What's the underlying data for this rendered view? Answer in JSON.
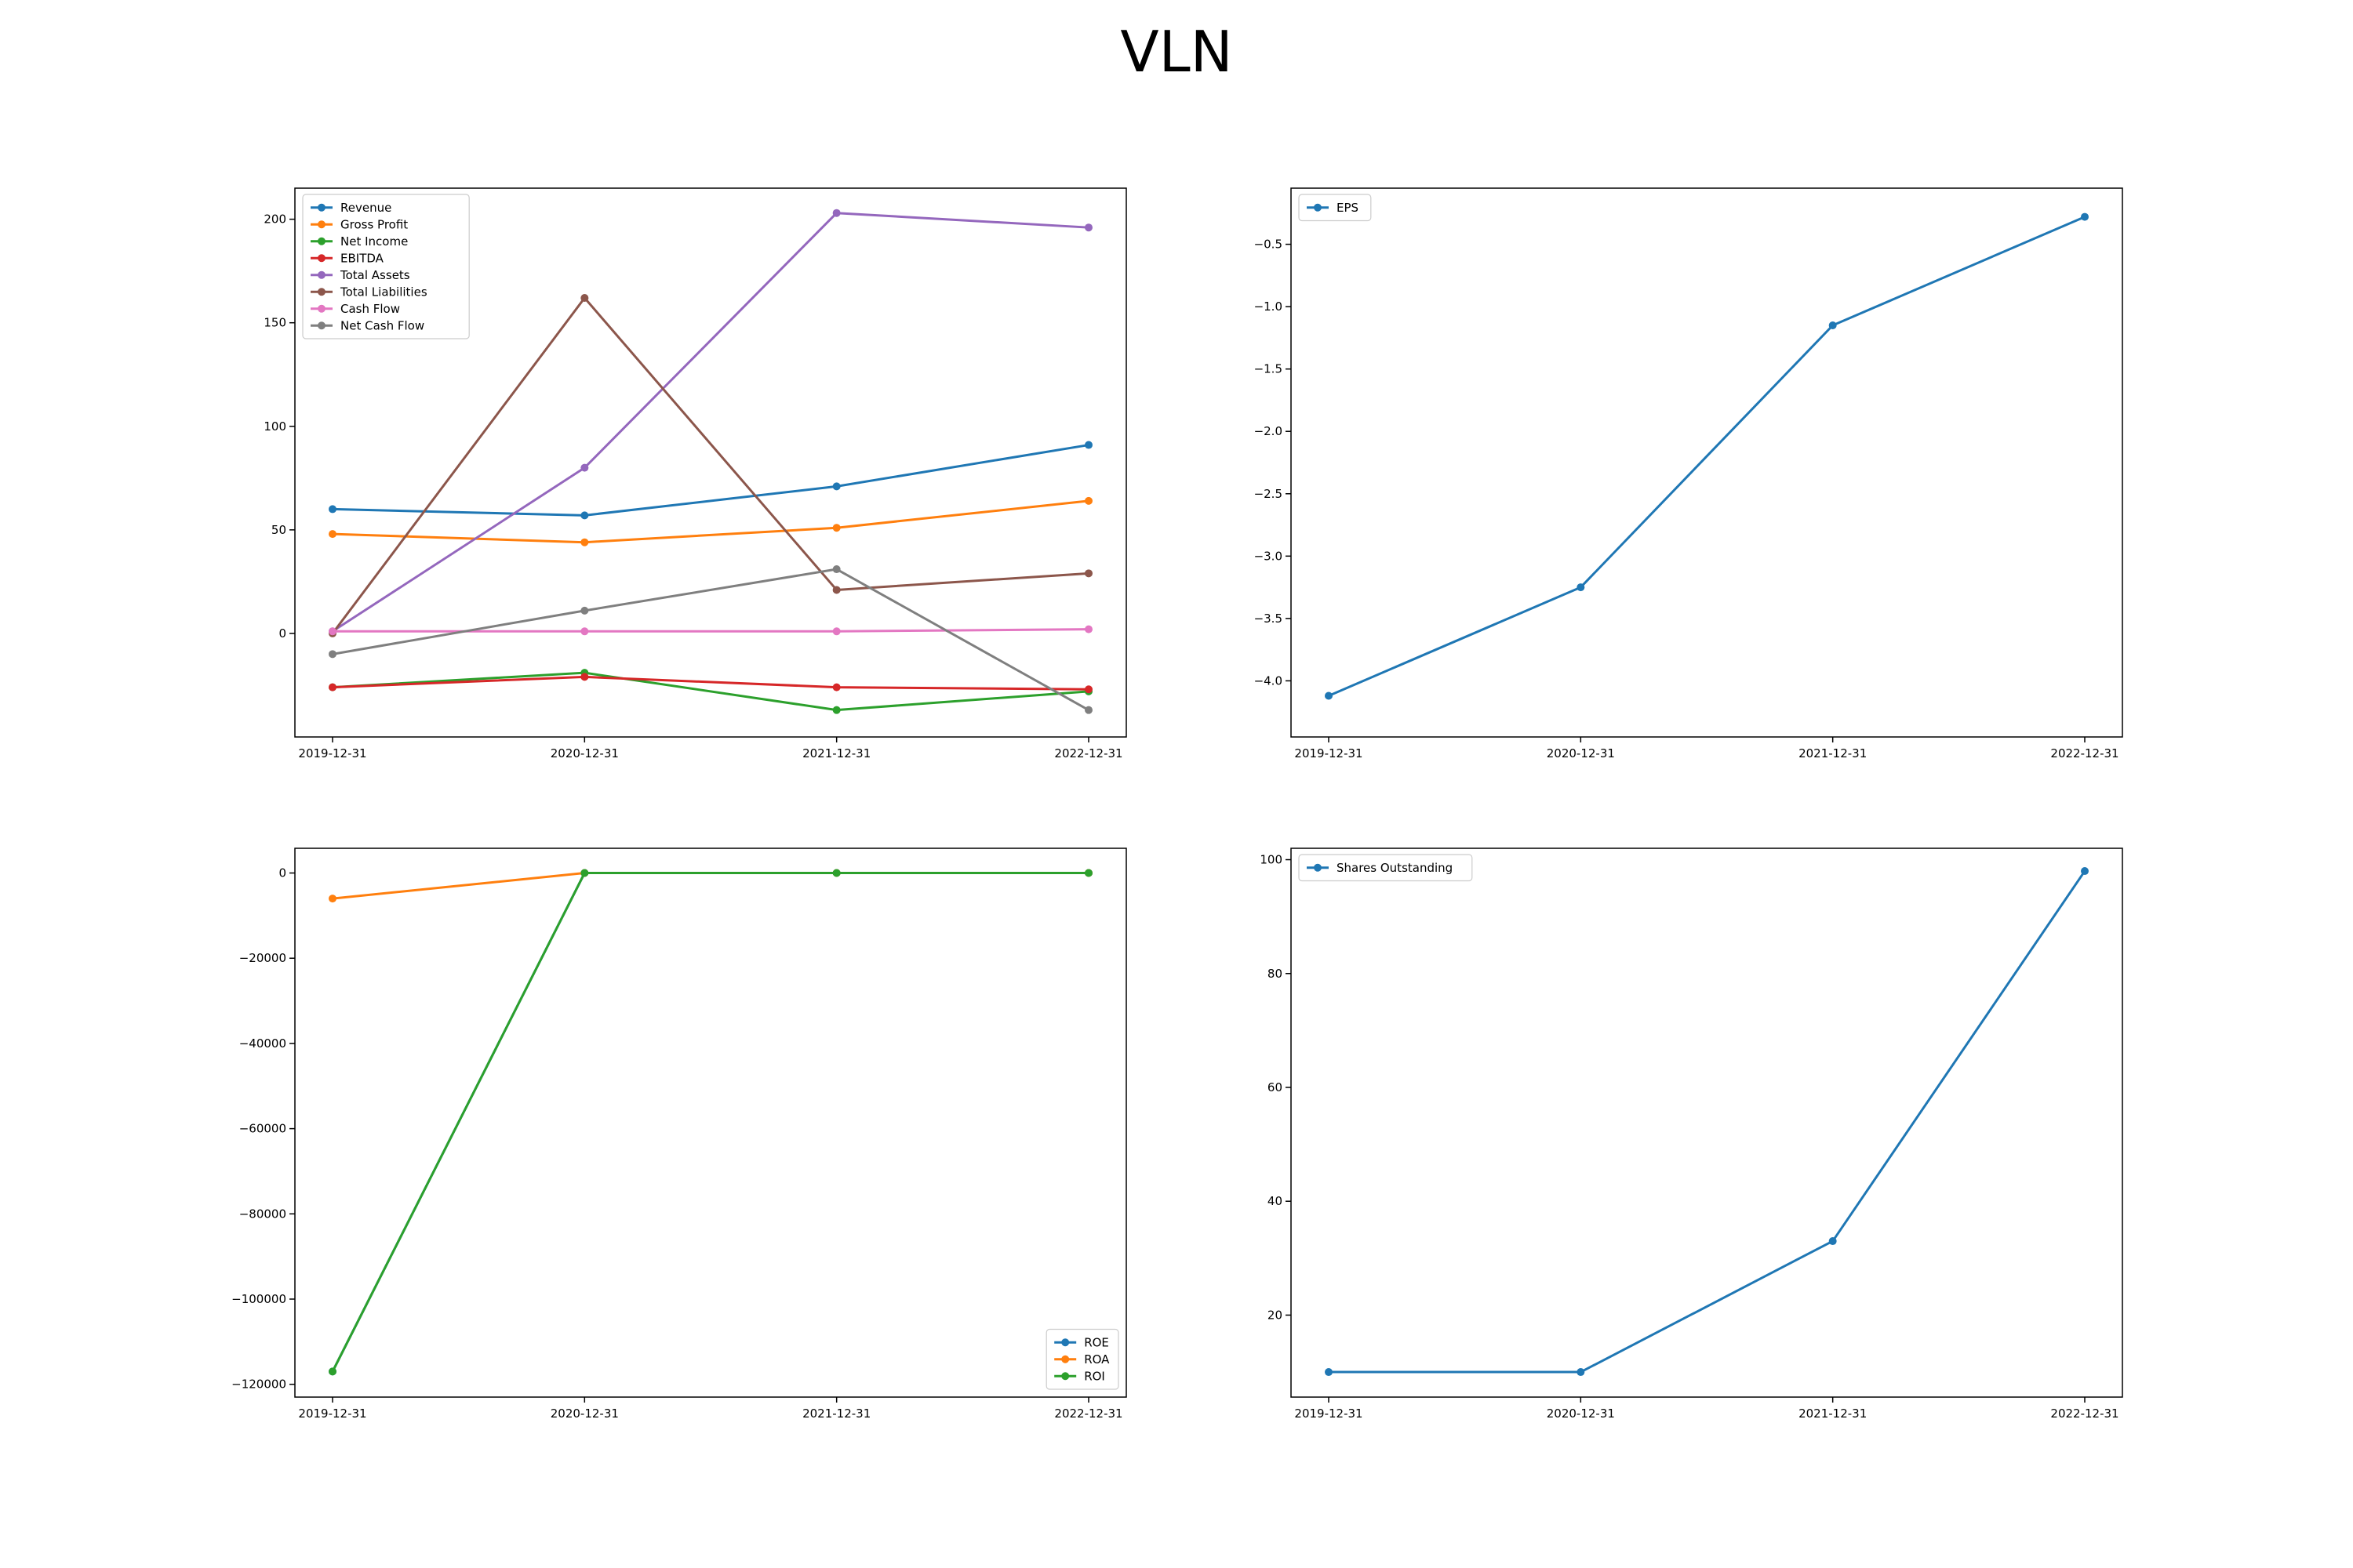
{
  "title": "VLN",
  "colors": {
    "blue": "#1f77b4",
    "orange": "#ff7f0e",
    "green": "#2ca02c",
    "red": "#d62728",
    "purple": "#9467bd",
    "brown": "#8c564b",
    "pink": "#e377c2",
    "gray": "#7f7f7f"
  },
  "chart_data": [
    {
      "type": "line",
      "x": [
        "2019-12-31",
        "2020-12-31",
        "2021-12-31",
        "2022-12-31"
      ],
      "ylim": [
        -50,
        215
      ],
      "yticks": [
        0,
        50,
        100,
        150,
        200
      ],
      "ytick_labels": [
        "0",
        "50",
        "100",
        "150",
        "200"
      ],
      "legend": "upper left",
      "series": [
        {
          "name": "Revenue",
          "color": "#1f77b4",
          "values": [
            60,
            57,
            71,
            91
          ]
        },
        {
          "name": "Gross Profit",
          "color": "#ff7f0e",
          "values": [
            48,
            44,
            51,
            64
          ]
        },
        {
          "name": "Net Income",
          "color": "#2ca02c",
          "values": [
            -26,
            -19,
            -37,
            -28
          ]
        },
        {
          "name": "EBITDA",
          "color": "#d62728",
          "values": [
            -26,
            -21,
            -26,
            -27
          ]
        },
        {
          "name": "Total Assets",
          "color": "#9467bd",
          "values": [
            1,
            80,
            203,
            196
          ]
        },
        {
          "name": "Total Liabilities",
          "color": "#8c564b",
          "values": [
            0,
            162,
            21,
            29
          ]
        },
        {
          "name": "Cash Flow",
          "color": "#e377c2",
          "values": [
            1,
            1,
            1,
            2
          ]
        },
        {
          "name": "Net Cash Flow",
          "color": "#7f7f7f",
          "values": [
            -10,
            11,
            31,
            -37
          ]
        }
      ]
    },
    {
      "type": "line",
      "x": [
        "2019-12-31",
        "2020-12-31",
        "2021-12-31",
        "2022-12-31"
      ],
      "ylim": [
        -4.45,
        -0.05
      ],
      "yticks": [
        -4.0,
        -3.5,
        -3.0,
        -2.5,
        -2.0,
        -1.5,
        -1.0,
        -0.5
      ],
      "ytick_labels": [
        "−4.0",
        "−3.5",
        "−3.0",
        "−2.5",
        "−2.0",
        "−1.5",
        "−1.0",
        "−0.5"
      ],
      "legend": "upper left",
      "series": [
        {
          "name": "EPS",
          "color": "#1f77b4",
          "values": [
            -4.12,
            -3.25,
            -1.15,
            -0.28
          ]
        }
      ]
    },
    {
      "type": "line",
      "x": [
        "2019-12-31",
        "2020-12-31",
        "2021-12-31",
        "2022-12-31"
      ],
      "ylim": [
        -123000,
        5800
      ],
      "yticks": [
        0,
        -20000,
        -40000,
        -60000,
        -80000,
        -100000,
        -120000
      ],
      "ytick_labels": [
        "0",
        "−20000",
        "−40000",
        "−60000",
        "−80000",
        "−100000",
        "−120000"
      ],
      "legend": "lower right",
      "series": [
        {
          "name": "ROE",
          "color": "#1f77b4",
          "values": [
            -117000,
            0,
            0,
            0
          ]
        },
        {
          "name": "ROA",
          "color": "#ff7f0e",
          "values": [
            -6000,
            0,
            0,
            0
          ]
        },
        {
          "name": "ROI",
          "color": "#2ca02c",
          "values": [
            -117000,
            0,
            0,
            0
          ]
        }
      ]
    },
    {
      "type": "line",
      "x": [
        "2019-12-31",
        "2020-12-31",
        "2021-12-31",
        "2022-12-31"
      ],
      "ylim": [
        5.6,
        102
      ],
      "yticks": [
        20,
        40,
        60,
        80,
        100
      ],
      "ytick_labels": [
        "20",
        "40",
        "60",
        "80",
        "100"
      ],
      "legend": "upper left",
      "series": [
        {
          "name": "Shares Outstanding",
          "color": "#1f77b4",
          "values": [
            10,
            10,
            33,
            98
          ]
        }
      ]
    }
  ]
}
